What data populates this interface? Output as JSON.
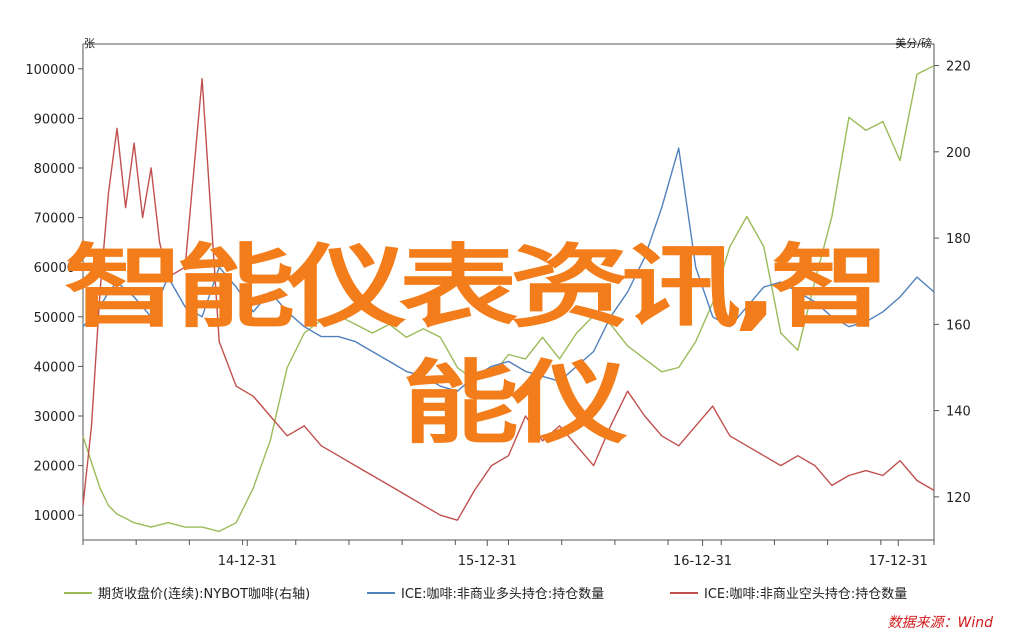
{
  "overlay": {
    "line1": "智能仪表资讯,智",
    "line2": "能仪"
  },
  "source": "数据来源：Wind",
  "colors": {
    "series1": "#9bbb59",
    "series2": "#4f81bd",
    "series3": "#c0504d",
    "overlay": "#f27d1a",
    "source": "#d11a1a"
  },
  "chart_data": {
    "type": "line",
    "title": "",
    "y_left": {
      "unit": "张",
      "ylim": [
        5000,
        105000
      ],
      "ticks": [
        10000,
        20000,
        30000,
        40000,
        50000,
        60000,
        70000,
        80000,
        90000,
        100000
      ],
      "tick_labels": [
        "10000",
        "20000",
        "30000",
        "40000",
        "50000",
        "60000",
        "70000",
        "80000",
        "90000",
        "100000"
      ]
    },
    "y_right": {
      "unit": "美分/磅",
      "ylim": [
        110,
        225
      ],
      "ticks": [
        120,
        140,
        160,
        180,
        200,
        220
      ],
      "tick_labels": [
        "120",
        "140",
        "160",
        "180",
        "200",
        "220"
      ]
    },
    "x": {
      "range": [
        0,
        100
      ],
      "tick_positions": [
        19.3,
        47.5,
        72.8,
        95.8
      ],
      "tick_labels": [
        "14-12-31",
        "15-12-31",
        "16-12-31",
        "17-12-31"
      ]
    },
    "grid": false,
    "legend_position": "bottom",
    "series": [
      {
        "name": "期货收盘价(连续):NYBOT咖啡(右轴)",
        "axis": "right",
        "x": [
          0,
          1,
          2,
          3,
          4,
          5,
          6,
          8,
          10,
          12,
          14,
          16,
          18,
          20,
          22,
          24,
          26,
          28,
          30,
          32,
          34,
          36,
          38,
          40,
          42,
          44,
          46,
          48,
          50,
          52,
          54,
          56,
          58,
          60,
          62,
          64,
          66,
          68,
          70,
          72,
          74,
          76,
          78,
          80,
          82,
          84,
          86,
          88,
          90,
          92,
          94,
          96,
          98,
          100
        ],
        "values": [
          134,
          128,
          122,
          118,
          116,
          115,
          114,
          113,
          114,
          113,
          113,
          112,
          114,
          122,
          133,
          150,
          158,
          161,
          162,
          160,
          158,
          160,
          157,
          159,
          157,
          150,
          147,
          148,
          153,
          152,
          157,
          152,
          158,
          162,
          160,
          155,
          152,
          149,
          150,
          156,
          165,
          178,
          185,
          178,
          158,
          154,
          170,
          185,
          208,
          205,
          207,
          198,
          218,
          220
        ]
      },
      {
        "name": "ICE:咖啡:非商业多头持仓:持仓数量",
        "axis": "left",
        "x": [
          0,
          1,
          2,
          3,
          4,
          6,
          8,
          10,
          12,
          14,
          16,
          18,
          20,
          22,
          24,
          26,
          28,
          30,
          32,
          34,
          36,
          38,
          40,
          42,
          44,
          46,
          48,
          50,
          52,
          54,
          56,
          58,
          60,
          62,
          64,
          66,
          68,
          70,
          72,
          74,
          76,
          78,
          80,
          82,
          84,
          86,
          88,
          90,
          92,
          94,
          96,
          98,
          100
        ],
        "values": [
          48000,
          50000,
          52000,
          55000,
          57000,
          54000,
          50000,
          58000,
          52000,
          50000,
          60000,
          56000,
          51000,
          55000,
          51000,
          48000,
          46000,
          46000,
          45000,
          43000,
          41000,
          39000,
          38000,
          36000,
          35000,
          38000,
          40000,
          41000,
          39000,
          38000,
          37000,
          40000,
          43000,
          50000,
          55000,
          62000,
          72000,
          84000,
          60000,
          50000,
          48000,
          52000,
          56000,
          57000,
          55000,
          53000,
          50000,
          48000,
          49000,
          51000,
          54000,
          58000,
          55000
        ]
      },
      {
        "name": "ICE:咖啡:非商业空头持仓:持仓数量",
        "axis": "left",
        "x": [
          0,
          1,
          2,
          3,
          4,
          5,
          6,
          7,
          8,
          9,
          10,
          12,
          14,
          16,
          18,
          20,
          22,
          24,
          26,
          28,
          30,
          32,
          34,
          36,
          38,
          40,
          42,
          44,
          46,
          48,
          50,
          52,
          54,
          56,
          58,
          60,
          62,
          64,
          66,
          68,
          70,
          72,
          74,
          76,
          78,
          80,
          82,
          84,
          86,
          88,
          90,
          92,
          94,
          96,
          98,
          100
        ],
        "values": [
          12000,
          28000,
          55000,
          75000,
          88000,
          72000,
          85000,
          70000,
          80000,
          65000,
          58000,
          60000,
          98000,
          45000,
          36000,
          34000,
          30000,
          26000,
          28000,
          24000,
          22000,
          20000,
          18000,
          16000,
          14000,
          12000,
          10000,
          9000,
          15000,
          20000,
          22000,
          30000,
          25000,
          28000,
          24000,
          20000,
          28000,
          35000,
          30000,
          26000,
          24000,
          28000,
          32000,
          26000,
          24000,
          22000,
          20000,
          22000,
          20000,
          16000,
          18000,
          19000,
          18000,
          21000,
          17000,
          15000
        ]
      }
    ]
  }
}
